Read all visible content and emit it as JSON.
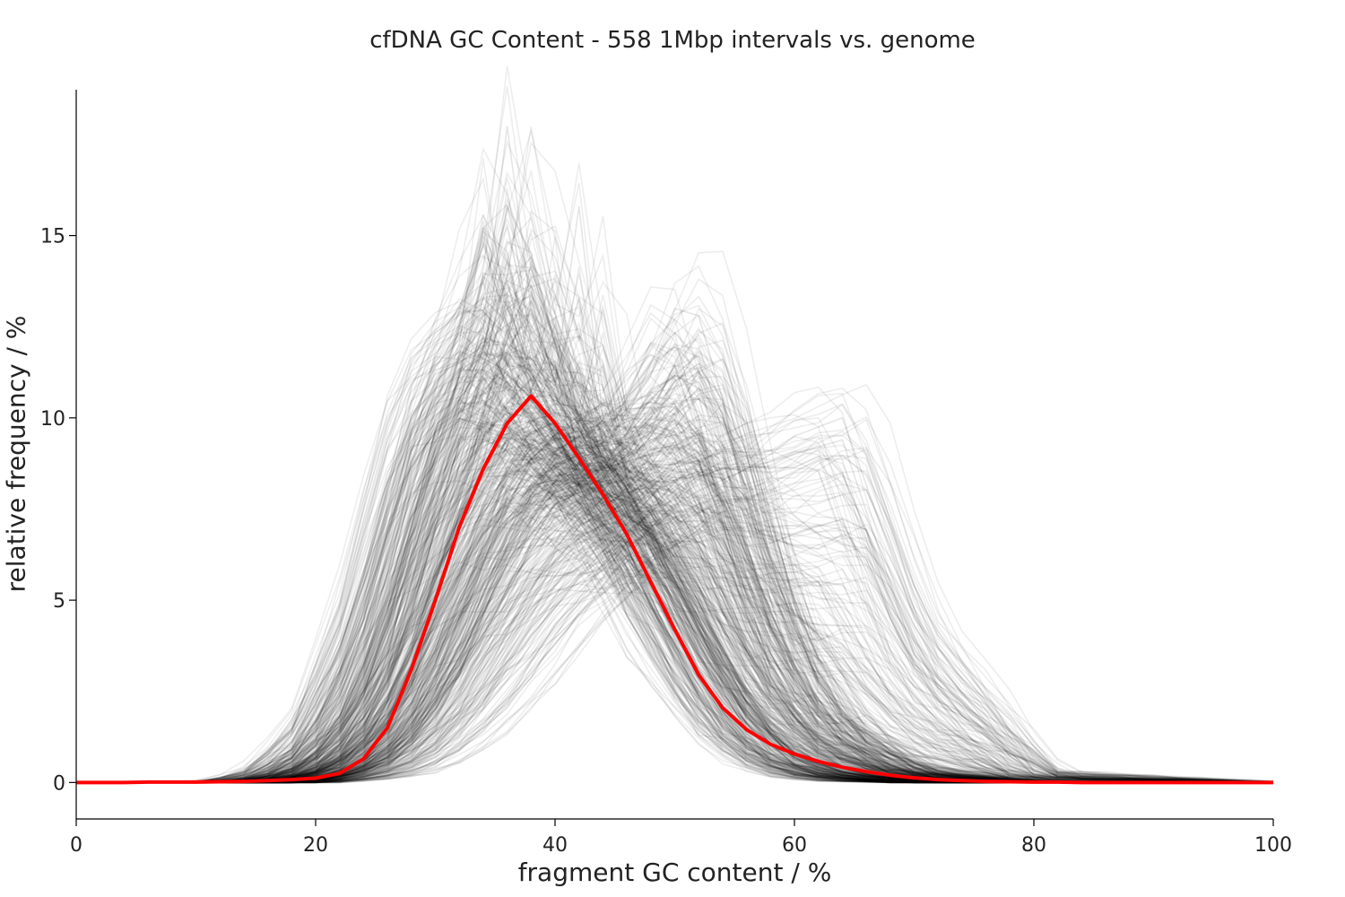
{
  "chart_data": {
    "type": "line",
    "title": "cfDNA GC Content - 558 1Mbp intervals vs. genome",
    "xlabel": "fragment GC content / %",
    "ylabel": "relative frequency / %",
    "xlim": [
      0,
      100
    ],
    "ylim": [
      -1,
      19
    ],
    "xticks": [
      0,
      20,
      40,
      60,
      80,
      100
    ],
    "yticks": [
      0,
      5,
      10,
      15
    ],
    "grid": false,
    "legend": "none",
    "background_series": {
      "count": 558,
      "color": "#000000",
      "profiles": [
        {
          "x": [
            0,
            12,
            16,
            20,
            24,
            26,
            28,
            30,
            32,
            34,
            36,
            38,
            40,
            42,
            44,
            46,
            48,
            50,
            52,
            54,
            56,
            58,
            60,
            64,
            70,
            80,
            100
          ],
          "y": [
            0,
            0,
            0.3,
            1.5,
            5,
            7.5,
            10,
            11.2,
            11.5,
            12,
            11,
            10,
            9,
            8,
            7,
            5.5,
            4,
            3,
            2,
            1.2,
            0.7,
            0.4,
            0.2,
            0.05,
            0,
            0,
            0
          ]
        },
        {
          "x": [
            0,
            12,
            16,
            20,
            24,
            26,
            28,
            30,
            32,
            34,
            36,
            38,
            40,
            42,
            44,
            46,
            48,
            50,
            52,
            54,
            56,
            58,
            60,
            64,
            70,
            80,
            100
          ],
          "y": [
            0,
            0,
            0.1,
            0.8,
            3.5,
            5.5,
            8,
            10,
            11,
            11.8,
            11.2,
            10.5,
            9.5,
            8.5,
            7.5,
            6.5,
            5,
            3.8,
            2.5,
            1.6,
            1,
            0.6,
            0.3,
            0.1,
            0,
            0,
            0
          ]
        },
        {
          "x": [
            0,
            12,
            16,
            20,
            24,
            26,
            28,
            30,
            32,
            34,
            36,
            38,
            40,
            42,
            44,
            46,
            48,
            50,
            52,
            54,
            56,
            58,
            60,
            64,
            70,
            80,
            100
          ],
          "y": [
            0,
            0,
            0.05,
            0.3,
            1.8,
            3.5,
            6,
            8.5,
            10.5,
            11.5,
            11.8,
            11,
            10,
            9,
            8,
            7,
            6,
            4.8,
            3.5,
            2.4,
            1.5,
            0.9,
            0.5,
            0.2,
            0.05,
            0,
            0
          ]
        },
        {
          "x": [
            0,
            12,
            16,
            20,
            24,
            26,
            28,
            30,
            32,
            34,
            36,
            38,
            40,
            42,
            44,
            46,
            48,
            50,
            52,
            54,
            56,
            58,
            60,
            64,
            70,
            80,
            100
          ],
          "y": [
            0,
            0,
            0,
            0.2,
            0.8,
            1.8,
            3.2,
            5,
            7,
            8.8,
            10,
            10.5,
            10.2,
            9.5,
            8.8,
            8,
            7,
            5.8,
            4.5,
            3.2,
            2.2,
            1.4,
            0.8,
            0.3,
            0.05,
            0,
            0
          ]
        },
        {
          "x": [
            0,
            12,
            16,
            20,
            24,
            26,
            28,
            30,
            32,
            34,
            36,
            38,
            40,
            42,
            44,
            46,
            48,
            50,
            52,
            54,
            56,
            58,
            60,
            64,
            70,
            80,
            100
          ],
          "y": [
            0,
            0,
            0,
            0.1,
            0.5,
            1.1,
            2,
            3.3,
            5,
            6.8,
            8.3,
            9.3,
            9.6,
            9.4,
            9,
            8.6,
            8.2,
            7.6,
            6.5,
            5,
            3.6,
            2.4,
            1.5,
            0.6,
            0.1,
            0,
            0
          ]
        },
        {
          "x": [
            0,
            12,
            16,
            20,
            24,
            26,
            28,
            30,
            32,
            34,
            36,
            38,
            40,
            42,
            44,
            46,
            48,
            50,
            52,
            54,
            56,
            58,
            60,
            64,
            70,
            80,
            100
          ],
          "y": [
            0,
            0,
            0,
            0.05,
            0.3,
            0.6,
            1.2,
            2,
            3.2,
            4.6,
            6,
            7.2,
            8,
            8.4,
            8.6,
            8.8,
            9,
            9.2,
            8.8,
            7.8,
            6.2,
            4.6,
            3.2,
            1.4,
            0.3,
            0,
            0
          ]
        },
        {
          "x": [
            0,
            12,
            16,
            20,
            24,
            26,
            28,
            30,
            32,
            34,
            36,
            38,
            40,
            42,
            44,
            46,
            48,
            50,
            52,
            54,
            56,
            58,
            60,
            64,
            70,
            80,
            100
          ],
          "y": [
            0,
            0,
            0,
            0,
            0.2,
            0.4,
            0.8,
            1.4,
            2.3,
            3.4,
            4.6,
            5.8,
            6.8,
            7.6,
            8.3,
            9,
            10,
            11,
            11.4,
            10.5,
            8.5,
            6.2,
            4.2,
            1.8,
            0.4,
            0,
            0
          ]
        },
        {
          "x": [
            0,
            12,
            16,
            20,
            24,
            26,
            28,
            30,
            32,
            34,
            36,
            38,
            40,
            42,
            44,
            46,
            48,
            50,
            52,
            54,
            56,
            58,
            60,
            64,
            70,
            80,
            100
          ],
          "y": [
            0,
            0,
            0,
            0,
            0.1,
            0.2,
            0.4,
            0.8,
            1.3,
            2,
            2.8,
            3.8,
            4.8,
            5.6,
            6.2,
            6.8,
            7.4,
            8,
            8.4,
            8.6,
            8.6,
            8.8,
            9,
            9.4,
            3.5,
            0.2,
            0
          ]
        },
        {
          "x": [
            0,
            12,
            16,
            20,
            24,
            26,
            28,
            30,
            32,
            34,
            36,
            38,
            40,
            42,
            44,
            46,
            48,
            50,
            52,
            54,
            56,
            58,
            60,
            64,
            70,
            80,
            100
          ],
          "y": [
            0,
            0,
            0,
            0,
            0.1,
            0.2,
            0.3,
            0.6,
            1,
            1.5,
            2.2,
            3,
            3.8,
            4.6,
            5.4,
            6.2,
            7,
            7.6,
            8,
            8.3,
            8.6,
            9,
            9.5,
            10,
            4.5,
            0.3,
            0
          ]
        },
        {
          "x": [
            0,
            12,
            16,
            20,
            24,
            26,
            28,
            30,
            32,
            34,
            36,
            38,
            40,
            42,
            44,
            46,
            48,
            50,
            52,
            54,
            56,
            58,
            60,
            64,
            70,
            80,
            100
          ],
          "y": [
            0,
            0,
            0.2,
            1.2,
            4.5,
            7,
            9.5,
            11,
            11.6,
            12.5,
            18,
            13,
            11,
            15.8,
            10,
            8,
            6,
            4.5,
            3,
            1.8,
            1,
            0.5,
            0.2,
            0.05,
            0,
            0,
            0
          ]
        },
        {
          "x": [
            0,
            12,
            16,
            20,
            24,
            26,
            28,
            30,
            32,
            34,
            36,
            38,
            40,
            42,
            44,
            46,
            48,
            50,
            52,
            54,
            56,
            58,
            60,
            64,
            70,
            80,
            100
          ],
          "y": [
            0,
            0,
            0,
            0.3,
            1.5,
            3,
            5.5,
            8,
            10.5,
            12.5,
            15.8,
            14.5,
            12,
            10,
            8.5,
            7.5,
            6.5,
            5.2,
            3.8,
            2.6,
            1.6,
            1,
            0.5,
            0.15,
            0,
            0,
            0
          ]
        },
        {
          "x": [
            0,
            12,
            16,
            20,
            24,
            26,
            28,
            30,
            32,
            34,
            36,
            38,
            40,
            42,
            44,
            46,
            48,
            50,
            52,
            54,
            56,
            58,
            60,
            64,
            70,
            80,
            100
          ],
          "y": [
            0,
            0,
            0,
            0.1,
            0.6,
            1.2,
            2.2,
            3.5,
            5,
            6.4,
            7.6,
            8.4,
            9,
            9.2,
            9.4,
            10,
            11.5,
            13,
            12.8,
            10.5,
            7.5,
            5,
            3,
            1.1,
            0.2,
            0,
            0
          ]
        }
      ]
    },
    "series": [
      {
        "color": "#ff0000",
        "x": [
          0,
          2,
          4,
          6,
          8,
          10,
          12,
          14,
          16,
          18,
          20,
          22,
          24,
          26,
          28,
          30,
          32,
          34,
          36,
          38,
          40,
          42,
          44,
          46,
          48,
          50,
          52,
          54,
          56,
          58,
          60,
          62,
          64,
          66,
          68,
          70,
          72,
          74,
          76,
          78,
          80,
          82,
          84,
          86,
          88,
          90,
          92,
          94,
          96,
          98,
          100
        ],
        "y": [
          0,
          0,
          0,
          0.01,
          0.01,
          0.01,
          0.02,
          0.03,
          0.05,
          0.08,
          0.12,
          0.25,
          0.65,
          1.5,
          3.1,
          5,
          7,
          8.6,
          9.85,
          10.6,
          9.85,
          8.9,
          7.9,
          6.8,
          5.5,
          4.2,
          2.95,
          2.05,
          1.45,
          1.05,
          0.78,
          0.58,
          0.42,
          0.3,
          0.2,
          0.13,
          0.08,
          0.05,
          0.03,
          0.02,
          0.01,
          0.01,
          0,
          0,
          0,
          0,
          0,
          0,
          0,
          0,
          0
        ]
      }
    ]
  }
}
